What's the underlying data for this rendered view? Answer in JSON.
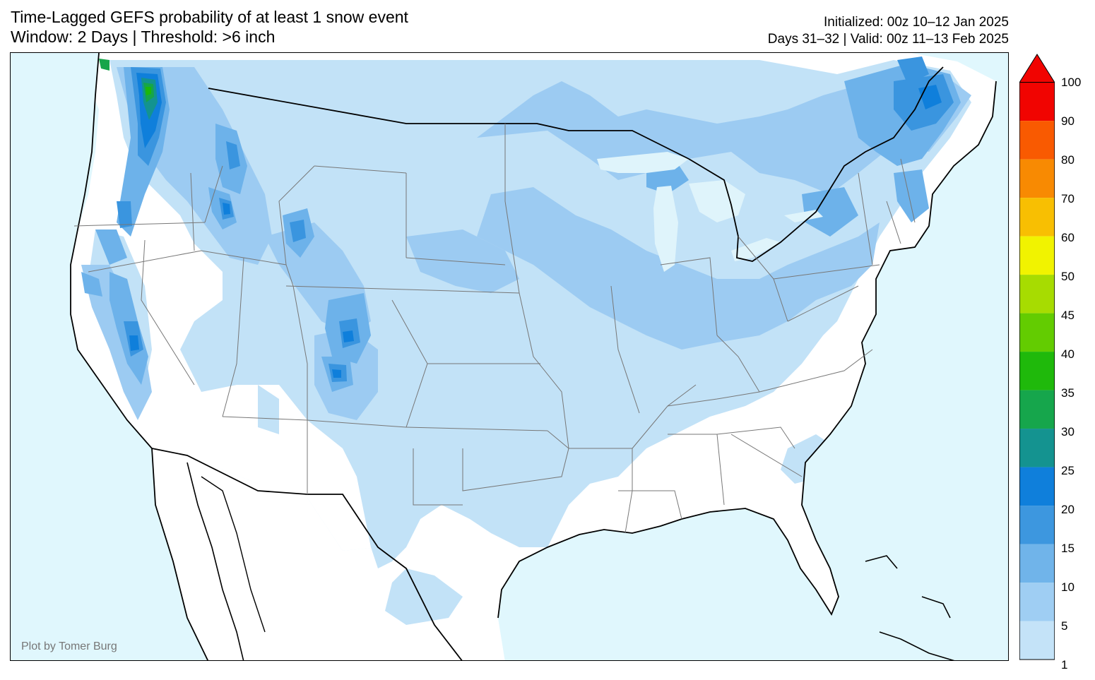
{
  "title": {
    "line1": "Time-Lagged GEFS probability of at least 1 snow event",
    "line2": "Window: 2 Days | Threshold: >6 inch"
  },
  "subtitle": {
    "line1": "Initialized: 00z 10–12 Jan 2025",
    "line2": "Days 31–32 | Valid: 00z 11–13 Feb 2025"
  },
  "credit": "Plot by Tomer Burg",
  "colors": {
    "ocean": "#e0f7fd",
    "land": "#ffffff",
    "p1": "#c2e2f7",
    "p5": "#9ccbf2",
    "p10": "#6db2ea",
    "p15": "#3a95df",
    "p20": "#0f7fdb",
    "p25": "#139390",
    "p30": "#16a54a",
    "p35": "#1cb80a"
  },
  "colorbar": {
    "levels": [
      "1",
      "5",
      "10",
      "15",
      "20",
      "25",
      "30",
      "35",
      "40",
      "45",
      "50",
      "60",
      "70",
      "80",
      "90",
      "100"
    ],
    "colors": [
      "#c4e3f8",
      "#9fcef3",
      "#70b4ea",
      "#3d97df",
      "#0f7fdb",
      "#149390",
      "#16a64c",
      "#1fb90b",
      "#63cc01",
      "#a7dc01",
      "#f1f300",
      "#f8bf02",
      "#f88a02",
      "#f95a01",
      "#f10401"
    ],
    "extend": "max",
    "extend_color": "#f10401"
  },
  "map": {
    "projection": "Lambert Conformal, CONUS",
    "shading": [
      {
        "region": "Cascades (WA/OR)",
        "max_level": "35"
      },
      {
        "region": "Sierra Nevada (CA)",
        "max_level": "20"
      },
      {
        "region": "Northern Rockies (ID/MT)",
        "max_level": "20"
      },
      {
        "region": "Colorado Rockies",
        "max_level": "20"
      },
      {
        "region": "Wasatch / Uinta (UT)",
        "max_level": "10"
      },
      {
        "region": "Northern Plains & Upper Midwest",
        "max_level": "10"
      },
      {
        "region": "Great Lakes",
        "max_level": "10"
      },
      {
        "region": "Northeast / New England",
        "max_level": "20"
      },
      {
        "region": "Central & Southern Plains",
        "max_level": "5"
      },
      {
        "region": "Mid-Mississippi & Ohio Valley",
        "max_level": "5"
      }
    ]
  }
}
